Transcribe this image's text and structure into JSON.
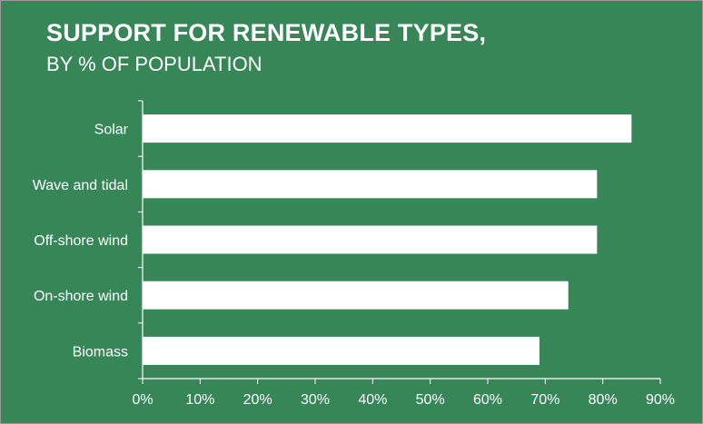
{
  "chart_data": {
    "type": "bar",
    "orientation": "horizontal",
    "title": "SUPPORT FOR RENEWABLE TYPES,",
    "subtitle": "BY % OF POPULATION",
    "categories": [
      "Solar",
      "Wave and tidal",
      "Off-shore wind",
      "On-shore wind",
      "Biomass"
    ],
    "values": [
      85,
      79,
      79,
      74,
      69
    ],
    "xlim": [
      0,
      90
    ],
    "xticks": [
      "0%",
      "10%",
      "20%",
      "30%",
      "40%",
      "50%",
      "60%",
      "70%",
      "80%",
      "90%"
    ],
    "grid": false,
    "colors": {
      "background": "#368657",
      "bar": "#ffffff",
      "text": "#ffffff"
    }
  }
}
